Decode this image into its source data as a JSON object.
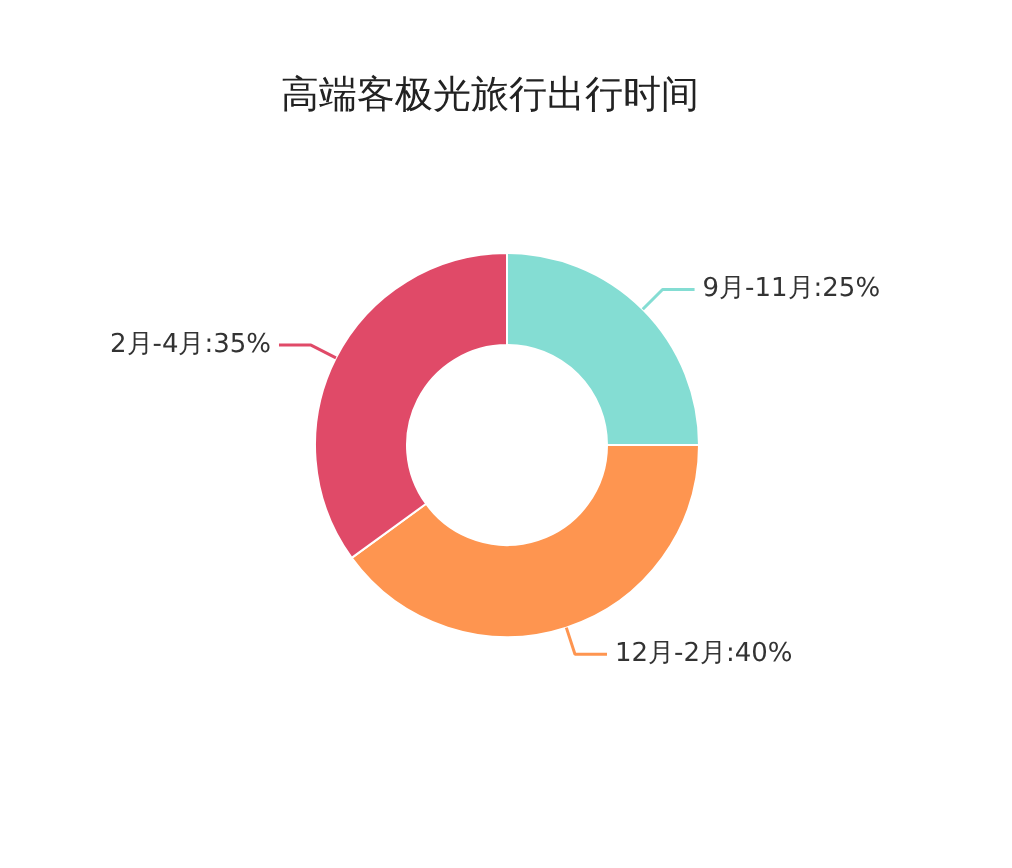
{
  "chart_data": {
    "type": "donut",
    "title": "高端客极光旅行出行时间",
    "categories": [
      "9月-11月",
      "12月-2月",
      "2月-4月"
    ],
    "values": [
      25,
      40,
      35
    ],
    "colors": [
      "#84ddd3",
      "#fe9550",
      "#e04a68"
    ],
    "value_labels": [
      "25%",
      "40%",
      "35%"
    ]
  }
}
